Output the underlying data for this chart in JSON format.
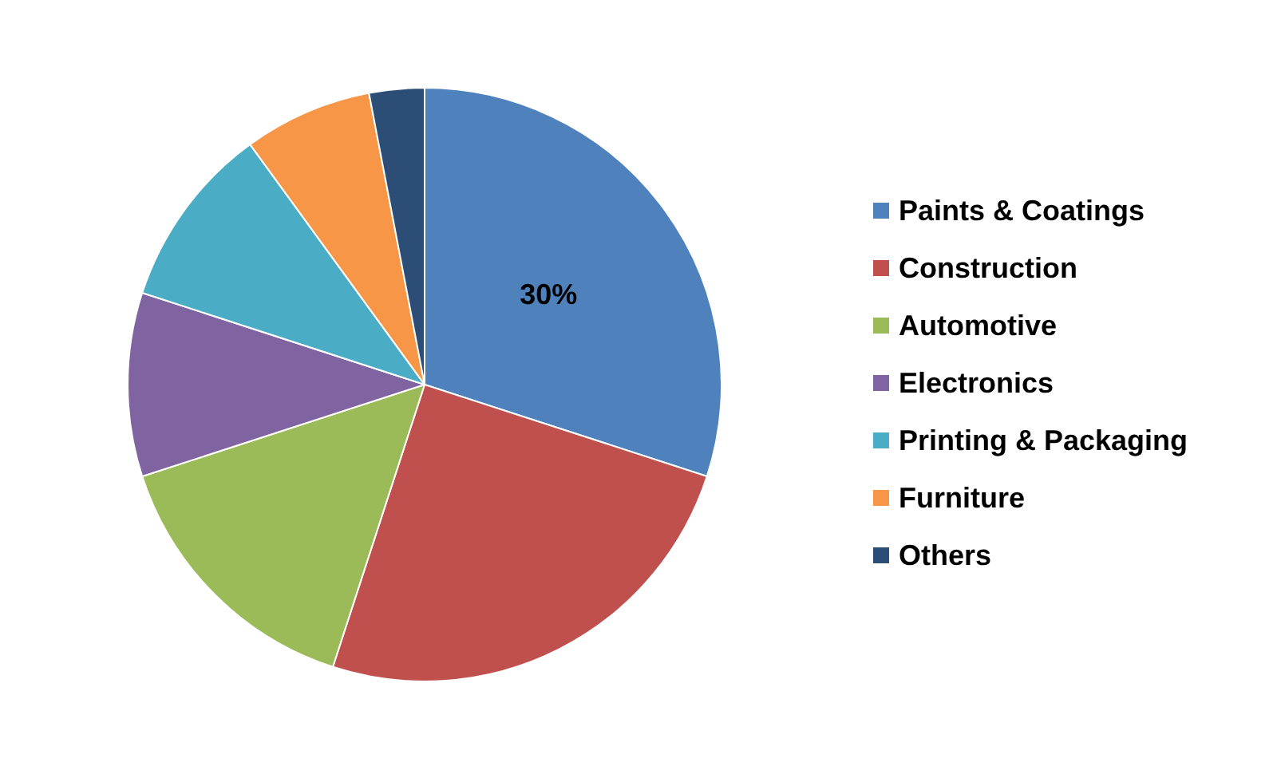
{
  "chart_data": {
    "type": "pie",
    "categories": [
      "Paints & Coatings",
      "Construction",
      "Automotive",
      "Electronics",
      "Printing & Packaging",
      "Furniture",
      "Others"
    ],
    "values": [
      30,
      25,
      15,
      10,
      10,
      7,
      3
    ],
    "colors": [
      "#4f81bd",
      "#c0504d",
      "#9bbb59",
      "#8064a2",
      "#4bacc6",
      "#f79646",
      "#2c4d75"
    ],
    "value_labels": [
      "30%",
      null,
      null,
      null,
      null,
      null,
      null
    ],
    "legend": "right"
  }
}
